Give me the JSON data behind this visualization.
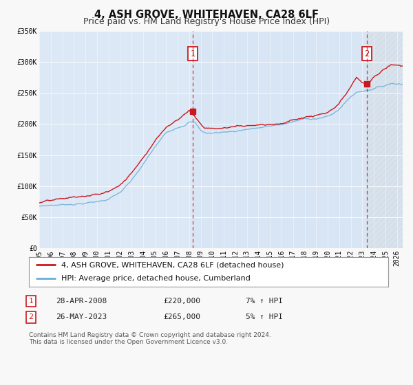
{
  "title": "4, ASH GROVE, WHITEHAVEN, CA28 6LF",
  "subtitle": "Price paid vs. HM Land Registry's House Price Index (HPI)",
  "background_color": "#f8f8f8",
  "plot_bg_color": "#dce8f5",
  "ylim": [
    0,
    350000
  ],
  "xlim_start": 1995.0,
  "xlim_end": 2026.5,
  "yticks": [
    0,
    50000,
    100000,
    150000,
    200000,
    250000,
    300000,
    350000
  ],
  "ytick_labels": [
    "£0",
    "£50K",
    "£100K",
    "£150K",
    "£200K",
    "£250K",
    "£300K",
    "£350K"
  ],
  "xticks": [
    1995,
    1996,
    1997,
    1998,
    1999,
    2000,
    2001,
    2002,
    2003,
    2004,
    2005,
    2006,
    2007,
    2008,
    2009,
    2010,
    2011,
    2012,
    2013,
    2014,
    2015,
    2016,
    2017,
    2018,
    2019,
    2020,
    2021,
    2022,
    2023,
    2024,
    2025,
    2026
  ],
  "hpi_color": "#6baed6",
  "price_color": "#cb181d",
  "marker_color": "#cb181d",
  "vline_color": "#cb181d",
  "event1_x": 2008.32,
  "event1_y": 220000,
  "event1_label": "1",
  "event2_x": 2023.42,
  "event2_y": 265000,
  "event2_label": "2",
  "legend_label_price": "4, ASH GROVE, WHITEHAVEN, CA28 6LF (detached house)",
  "legend_label_hpi": "HPI: Average price, detached house, Cumberland",
  "table_row1": [
    "1",
    "28-APR-2008",
    "£220,000",
    "7% ↑ HPI"
  ],
  "table_row2": [
    "2",
    "26-MAY-2023",
    "£265,000",
    "5% ↑ HPI"
  ],
  "footnote": "Contains HM Land Registry data © Crown copyright and database right 2024.\nThis data is licensed under the Open Government Licence v3.0.",
  "title_fontsize": 10.5,
  "subtitle_fontsize": 9,
  "tick_fontsize": 7,
  "legend_fontsize": 8,
  "table_fontsize": 8,
  "footnote_fontsize": 6.5,
  "hpi_kx": [
    1995,
    1996,
    1997,
    1998,
    1999,
    2000,
    2001,
    2002,
    2003,
    2004,
    2005,
    2006,
    2007,
    2007.5,
    2008.0,
    2008.5,
    2009,
    2009.5,
    2010,
    2011,
    2012,
    2013,
    2014,
    2015,
    2016,
    2017,
    2018,
    2019,
    2020,
    2020.5,
    2021,
    2022,
    2022.5,
    2023,
    2024,
    2025,
    2025.5
  ],
  "hpi_ky": [
    68000,
    70000,
    71000,
    73000,
    75000,
    77000,
    82000,
    92000,
    110000,
    135000,
    162000,
    185000,
    196000,
    200000,
    207000,
    205000,
    192000,
    188000,
    188000,
    190000,
    192000,
    196000,
    198000,
    200000,
    203000,
    207000,
    211000,
    213000,
    216000,
    220000,
    228000,
    248000,
    255000,
    258000,
    263000,
    268000,
    272000
  ],
  "price_kx": [
    1995,
    1996,
    1997,
    1998,
    1999,
    2000,
    2001,
    2002,
    2003,
    2004,
    2005,
    2006,
    2007,
    2007.5,
    2008.0,
    2008.32,
    2008.8,
    2009.3,
    2010,
    2011,
    2012,
    2013,
    2014,
    2015,
    2016,
    2017,
    2018,
    2019,
    2020,
    2020.5,
    2021,
    2022,
    2022.5,
    2023.0,
    2023.42,
    2024.0,
    2024.5,
    2025.0,
    2025.5
  ],
  "price_ky": [
    73000,
    75000,
    76000,
    79000,
    80000,
    82000,
    87000,
    98000,
    117000,
    145000,
    172000,
    196000,
    210000,
    218000,
    225000,
    220000,
    208000,
    198000,
    197000,
    198000,
    200000,
    203000,
    206000,
    208000,
    211000,
    216000,
    220000,
    222000,
    225000,
    230000,
    238000,
    262000,
    278000,
    270000,
    265000,
    278000,
    285000,
    292000,
    298000
  ]
}
